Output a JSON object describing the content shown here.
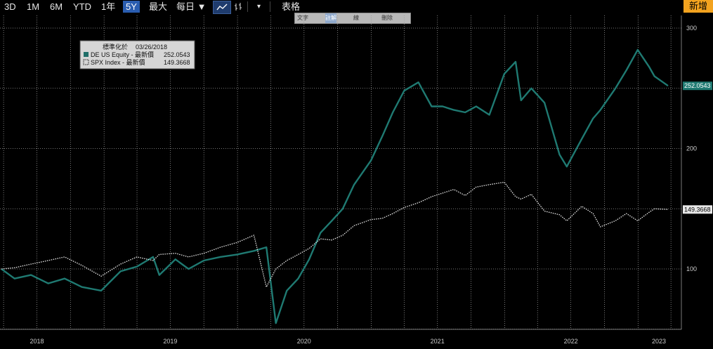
{
  "toolbar": {
    "periods": [
      "3D",
      "1M",
      "6M",
      "YTD",
      "1年",
      "5Y",
      "最大"
    ],
    "selected_period": "5Y",
    "frequency": "每日",
    "frequency_arrow": "▼",
    "table_label": "表格",
    "new_button": "新增",
    "dropdown_arrow": "▾"
  },
  "annotation_toolbar": [
    "文字",
    "註解",
    "線",
    "刪除"
  ],
  "legend": {
    "normalized_label": "標準化於",
    "normalized_date": "03/26/2018",
    "entries": [
      {
        "name": "DE US Equity - 最新價",
        "value": "252.0543",
        "style": "solid"
      },
      {
        "name": "SPX Index - 最新價",
        "value": "149.3668",
        "style": "dotted"
      }
    ]
  },
  "colors": {
    "background": "#000000",
    "de_series": "#1f7a72",
    "spx_series": "#e8e8e8",
    "grid": "#9a9a9a",
    "de_tag": "#1f7a72",
    "spx_tag": "#e8e8e8"
  },
  "last_value_tags": [
    "252.0543",
    "149.3668"
  ],
  "chart_data": {
    "type": "line",
    "title": "",
    "xlabel": "",
    "ylabel": "",
    "x_tick_labels": [
      "2018",
      "2019",
      "2020",
      "2021",
      "2022",
      "2023"
    ],
    "y_tick_labels": [
      "100",
      "200",
      "300"
    ],
    "ylim": [
      30,
      310
    ],
    "xlim": [
      "2018-03-26",
      "2023-03-24"
    ],
    "grid": true,
    "legend_position": "top-left",
    "series": [
      {
        "name": "DE US Equity - 最新價",
        "style": "solid",
        "x": [
          "2018-03-26",
          "2018-05-01",
          "2018-06-15",
          "2018-08-01",
          "2018-09-15",
          "2018-11-01",
          "2018-12-24",
          "2019-02-15",
          "2019-04-01",
          "2019-05-15",
          "2019-06-01",
          "2019-07-15",
          "2019-08-20",
          "2019-10-01",
          "2019-11-15",
          "2019-12-31",
          "2020-02-15",
          "2020-03-20",
          "2020-04-15",
          "2020-05-15",
          "2020-06-15",
          "2020-07-15",
          "2020-08-15",
          "2020-09-15",
          "2020-10-15",
          "2020-11-15",
          "2020-12-31",
          "2021-01-31",
          "2021-03-01",
          "2021-04-01",
          "2021-05-10",
          "2021-06-15",
          "2021-07-15",
          "2021-08-15",
          "2021-09-15",
          "2021-10-15",
          "2021-11-20",
          "2021-12-31",
          "2022-01-31",
          "2022-02-15",
          "2022-03-15",
          "2022-04-20",
          "2022-05-31",
          "2022-06-20",
          "2022-07-31",
          "2022-08-31",
          "2022-09-20",
          "2022-10-31",
          "2022-11-30",
          "2022-12-31",
          "2023-01-31",
          "2023-02-15",
          "2023-03-24"
        ],
        "values": [
          100,
          92,
          95,
          88,
          92,
          85,
          82,
          98,
          102,
          110,
          95,
          108,
          100,
          107,
          110,
          112,
          115,
          118,
          55,
          82,
          92,
          108,
          130,
          140,
          150,
          170,
          190,
          210,
          230,
          248,
          255,
          235,
          235,
          232,
          230,
          235,
          228,
          262,
          272,
          240,
          250,
          238,
          195,
          185,
          208,
          225,
          232,
          250,
          265,
          282,
          268,
          260,
          252.0543
        ]
      },
      {
        "name": "SPX Index - 最新價",
        "style": "dotted",
        "x": [
          "2018-03-26",
          "2018-05-01",
          "2018-06-15",
          "2018-08-01",
          "2018-09-15",
          "2018-11-01",
          "2018-12-24",
          "2019-02-15",
          "2019-04-01",
          "2019-05-15",
          "2019-06-01",
          "2019-07-15",
          "2019-08-20",
          "2019-10-01",
          "2019-11-15",
          "2019-12-31",
          "2020-02-15",
          "2020-03-20",
          "2020-04-15",
          "2020-05-15",
          "2020-06-15",
          "2020-07-15",
          "2020-08-15",
          "2020-09-15",
          "2020-10-15",
          "2020-11-15",
          "2020-12-31",
          "2021-01-31",
          "2021-03-01",
          "2021-04-01",
          "2021-05-10",
          "2021-06-15",
          "2021-07-15",
          "2021-08-15",
          "2021-09-15",
          "2021-10-15",
          "2021-11-20",
          "2021-12-31",
          "2022-01-31",
          "2022-02-15",
          "2022-03-15",
          "2022-04-20",
          "2022-05-31",
          "2022-06-20",
          "2022-07-31",
          "2022-08-31",
          "2022-09-20",
          "2022-10-31",
          "2022-11-30",
          "2022-12-31",
          "2023-01-31",
          "2023-02-15",
          "2023-03-24"
        ],
        "values": [
          100,
          101,
          104,
          107,
          110,
          103,
          94,
          104,
          110,
          107,
          112,
          113,
          110,
          113,
          118,
          122,
          128,
          85,
          100,
          107,
          112,
          117,
          125,
          124,
          128,
          136,
          141,
          142,
          146,
          151,
          155,
          160,
          163,
          166,
          161,
          168,
          170,
          172,
          160,
          158,
          162,
          148,
          145,
          140,
          152,
          146,
          135,
          140,
          146,
          140,
          147,
          150,
          149.3668
        ]
      }
    ]
  }
}
